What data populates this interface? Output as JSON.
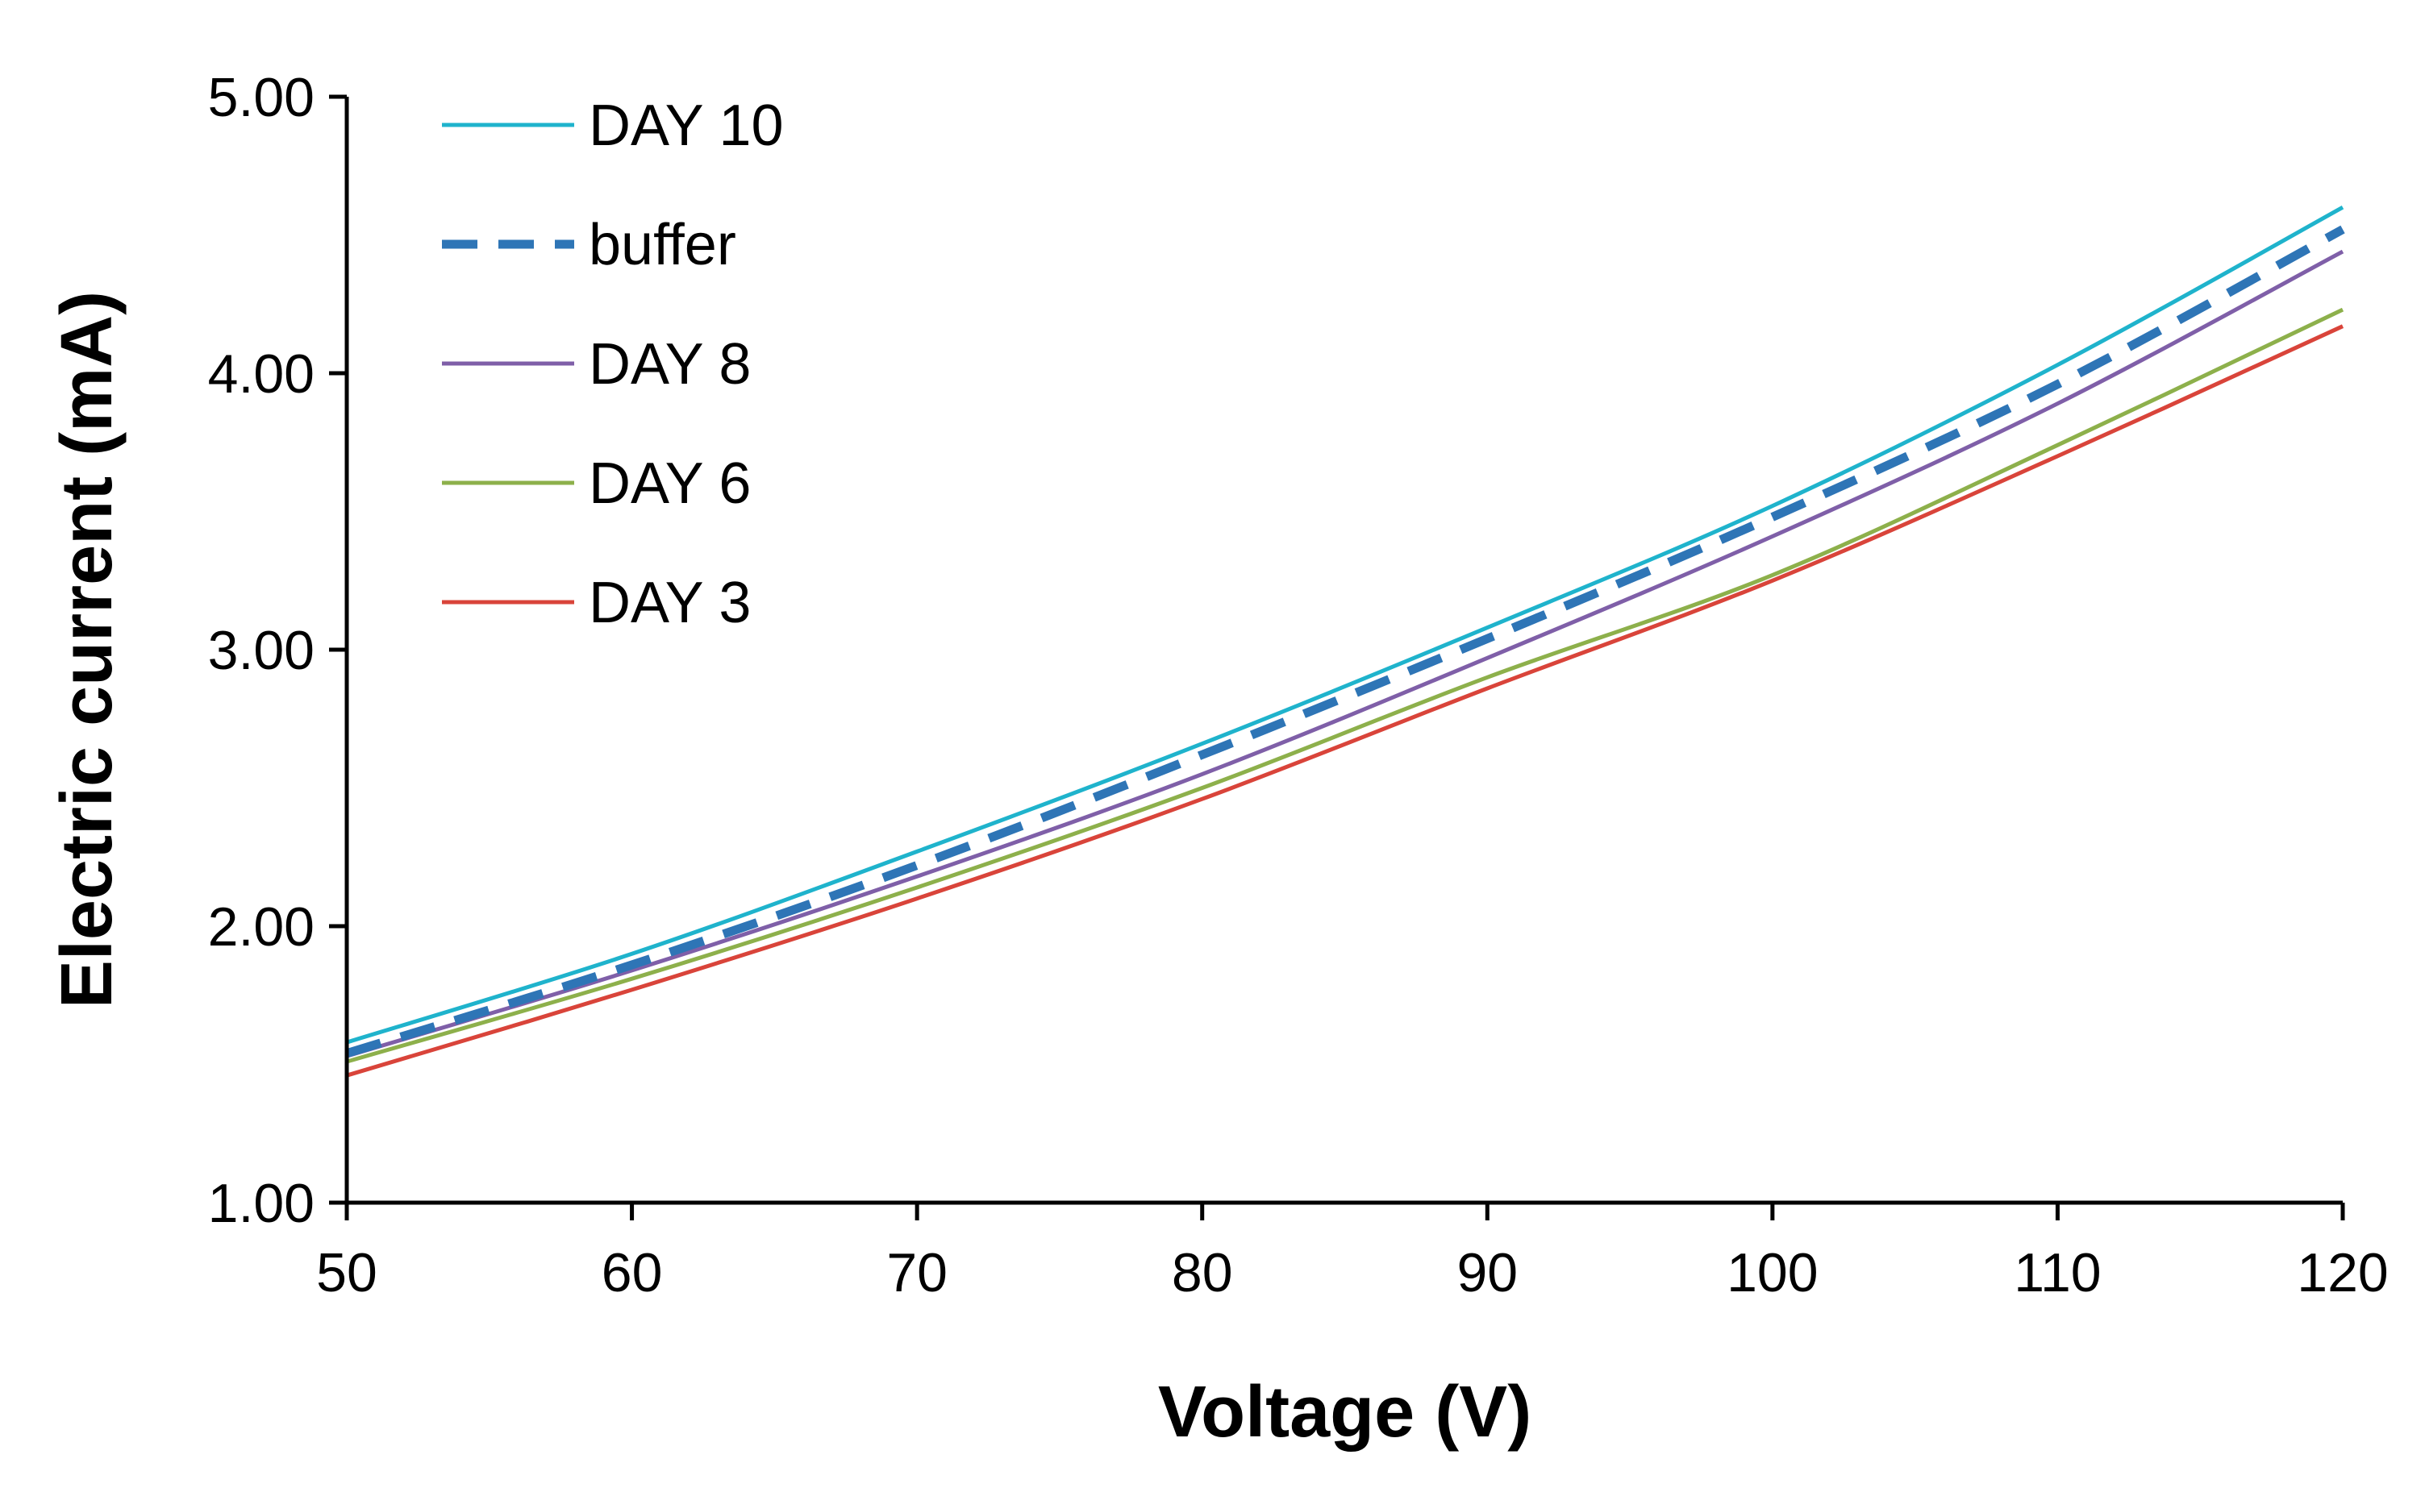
{
  "chart_data": {
    "type": "line",
    "title": "",
    "xlabel": "Voltage (V)",
    "ylabel": "Electric current (mA)",
    "xlim": [
      50,
      120
    ],
    "ylim": [
      1.0,
      5.0
    ],
    "xticks": [
      50,
      60,
      70,
      80,
      90,
      100,
      110,
      120
    ],
    "xtick_labels": [
      "50",
      "60",
      "70",
      "80",
      "90",
      "100",
      "110",
      "120"
    ],
    "yticks": [
      1.0,
      2.0,
      3.0,
      4.0,
      5.0
    ],
    "ytick_labels": [
      "1.00",
      "2.00",
      "3.00",
      "4.00",
      "5.00"
    ],
    "grid": false,
    "legend_position": "top-left",
    "x": [
      50,
      60,
      70,
      80,
      90,
      100,
      110,
      120
    ],
    "series": [
      {
        "name": "DAY 10",
        "color": "#1fb3cc",
        "dash": "solid",
        "values": [
          1.58,
          1.9,
          2.27,
          2.66,
          3.08,
          3.52,
          4.03,
          4.6
        ]
      },
      {
        "name": "buffer",
        "color": "#2e75b6",
        "dash": "dashed",
        "values": [
          1.54,
          1.86,
          2.22,
          2.62,
          3.04,
          3.48,
          3.96,
          4.52
        ]
      },
      {
        "name": "DAY 8",
        "color": "#7f5fa8",
        "dash": "solid",
        "values": [
          1.53,
          1.84,
          2.18,
          2.55,
          2.97,
          3.41,
          3.89,
          4.44
        ]
      },
      {
        "name": "DAY 6",
        "color": "#8db04b",
        "dash": "solid",
        "values": [
          1.51,
          1.81,
          2.14,
          2.5,
          2.9,
          3.27,
          3.74,
          4.23
        ]
      },
      {
        "name": "DAY 3",
        "color": "#d9443a",
        "dash": "solid",
        "values": [
          1.46,
          1.77,
          2.1,
          2.46,
          2.86,
          3.25,
          3.7,
          4.17
        ]
      }
    ]
  }
}
